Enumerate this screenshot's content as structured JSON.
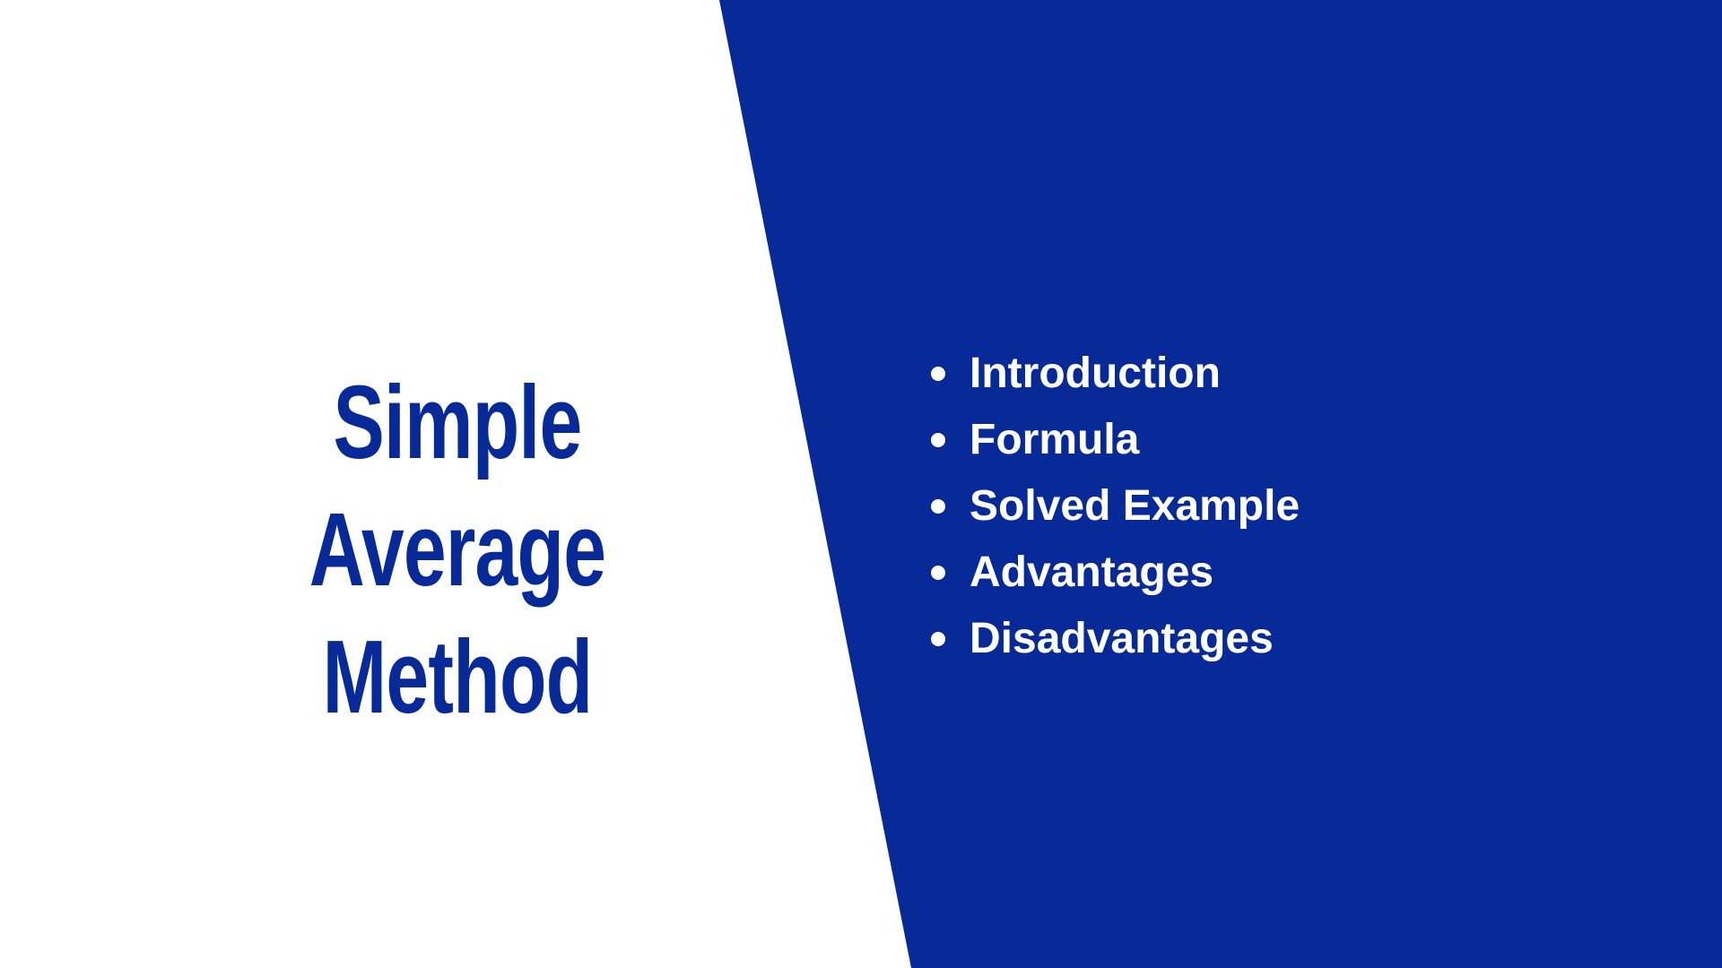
{
  "colors": {
    "brand_blue": "#082a98",
    "background": "#ffffff",
    "bullet_text": "#ffffff"
  },
  "title": {
    "line1": "Simple Average",
    "line2": "Method"
  },
  "agenda": {
    "items": [
      {
        "label": "Introduction"
      },
      {
        "label": "Formula"
      },
      {
        "label": "Solved Example"
      },
      {
        "label": "Advantages"
      },
      {
        "label": "Disadvantages"
      }
    ]
  }
}
